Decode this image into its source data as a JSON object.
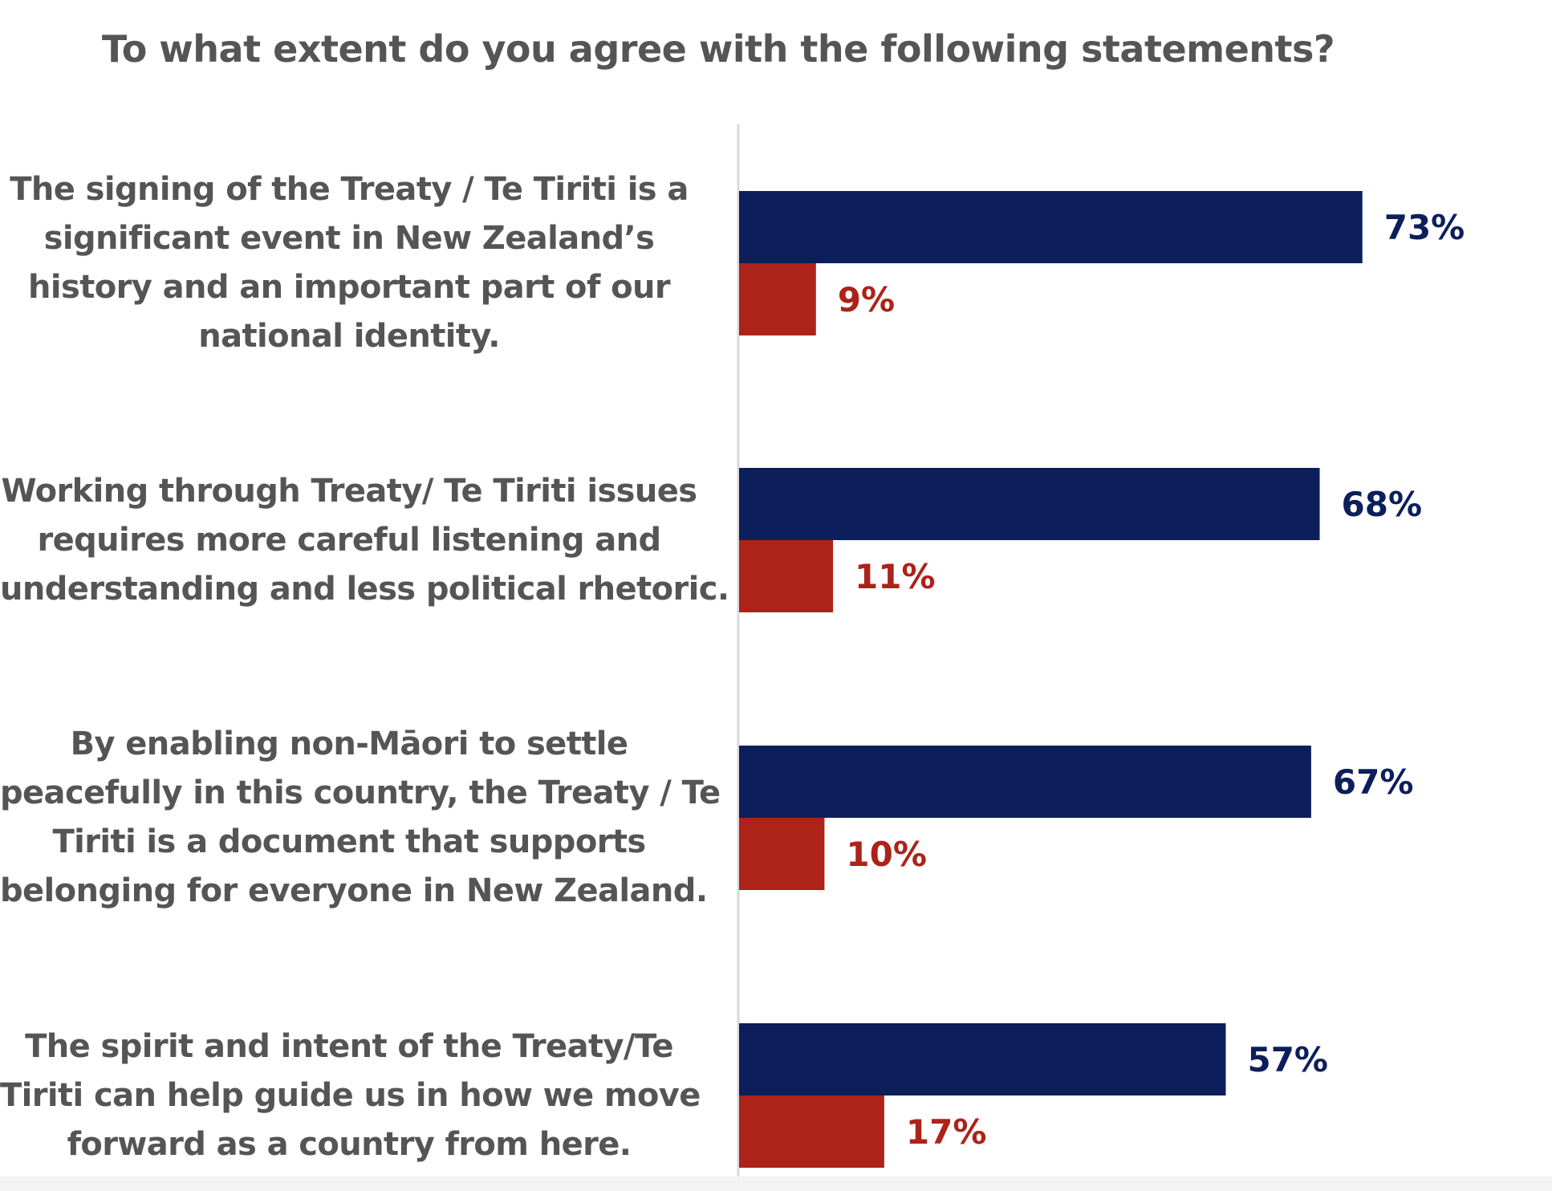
{
  "chart_data": {
    "type": "bar",
    "orientation": "horizontal",
    "title": "To what extent do you agree with the following statements?",
    "categories": [
      [
        "The signing of the Treaty / Te Tiriti is a",
        "significant event in New Zealand’s",
        "history and an important part of our",
        "national identity."
      ],
      [
        "Working through Treaty/ Te Tiriti issues",
        "requires more careful listening and",
        "understanding and less political rhetoric."
      ],
      [
        "By enabling non-Māori to settle",
        "peacefully in this country, the Treaty / Te",
        "Tiriti is a document that supports",
        "belonging for everyone in New Zealand."
      ],
      [
        "The spirit and intent of the Treaty/Te",
        "Tiriti can help guide us in how we move",
        "forward as a country from here."
      ]
    ],
    "series": [
      {
        "color": "#0c1f5a",
        "values": [
          73,
          68,
          67,
          57
        ],
        "labels": [
          "73%",
          "68%",
          "67%",
          "57%"
        ]
      },
      {
        "color": "#ad2219",
        "values": [
          9,
          11,
          10,
          17
        ],
        "labels": [
          "9%",
          "11%",
          "10%",
          "17%"
        ]
      }
    ],
    "xlim": [
      0,
      100
    ],
    "grid": false,
    "legend": "none"
  }
}
